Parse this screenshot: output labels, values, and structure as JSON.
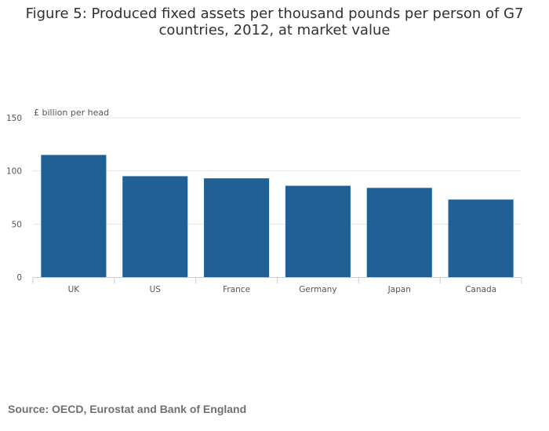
{
  "title_lines": [
    "Figure 5: Produced fixed assets per thousand pounds per person of G7",
    "countries, 2012, at market value"
  ],
  "source": "Source: OECD, Eurostat and Bank of England",
  "colors": {
    "bar": "#206095",
    "grid": "#e6e6e6",
    "axis": "#cccccc",
    "text": "#555555"
  },
  "chart_data": {
    "type": "bar",
    "title": "Figure 5: Produced fixed assets per thousand pounds per person of G7 countries, 2012, at market value",
    "ylabel": "£ billion per head",
    "xlabel": "",
    "categories": [
      "UK",
      "US",
      "France",
      "Germany",
      "Japan",
      "Canada"
    ],
    "values": [
      115,
      95,
      93,
      86,
      84,
      73
    ],
    "ylim": [
      0,
      150
    ],
    "yticks": [
      "0",
      "50",
      "100",
      "150"
    ],
    "ytick_values": [
      0,
      50,
      100,
      150
    ],
    "grid": true,
    "legend": "none"
  }
}
